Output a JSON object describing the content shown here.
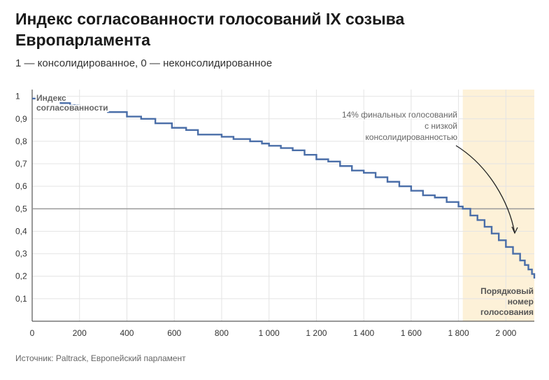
{
  "header": {
    "title": "Индекс согласованности голосований IX созыва Европарламента",
    "subtitle": "1 — консолидированное, 0 — неконсолидированное"
  },
  "footer": {
    "source": "Источник: Paltrack, Европейский парламент"
  },
  "chart_data": {
    "type": "line",
    "ylabel": "Индекс согласованности",
    "xlabel": [
      "Порядковый",
      "номер",
      "голосования"
    ],
    "xlim": [
      0,
      2120
    ],
    "ylim": [
      0,
      1.03
    ],
    "x_ticks": [
      0,
      200,
      400,
      600,
      800,
      1000,
      1200,
      1400,
      1600,
      1800,
      2000
    ],
    "x_tick_labels": [
      "0",
      "200",
      "400",
      "600",
      "800",
      "1 000",
      "1 200",
      "1 400",
      "1 600",
      "1 800",
      "2 000"
    ],
    "y_ticks": [
      0.1,
      0.2,
      0.3,
      0.4,
      0.5,
      0.6,
      0.7,
      0.8,
      0.9,
      1
    ],
    "y_tick_labels": [
      "0,1",
      "0,2",
      "0,3",
      "0,4",
      "0,5",
      "0,6",
      "0,7",
      "0,8",
      "0,9",
      "1"
    ],
    "grid": true,
    "reference_line": {
      "y": 0.5
    },
    "highlight": {
      "x_from": 1818,
      "x_to": 2120,
      "color": "#fdf1d8",
      "annotation": [
        "14% финальных голосований",
        "с низкой",
        "консолидированностью"
      ]
    },
    "series": [
      {
        "color": "#4a6ea8",
        "x": [
          0,
          60,
          120,
          160,
          200,
          260,
          320,
          400,
          460,
          520,
          590,
          650,
          700,
          800,
          850,
          920,
          970,
          1000,
          1050,
          1100,
          1150,
          1200,
          1250,
          1300,
          1350,
          1400,
          1450,
          1500,
          1550,
          1600,
          1650,
          1700,
          1750,
          1800,
          1818,
          1850,
          1880,
          1910,
          1940,
          1970,
          2000,
          2030,
          2060,
          2080,
          2095,
          2110,
          2120
        ],
        "y": [
          0.99,
          0.98,
          0.97,
          0.96,
          0.95,
          0.94,
          0.93,
          0.91,
          0.9,
          0.88,
          0.86,
          0.85,
          0.83,
          0.82,
          0.81,
          0.8,
          0.79,
          0.78,
          0.77,
          0.76,
          0.74,
          0.72,
          0.71,
          0.69,
          0.67,
          0.66,
          0.64,
          0.62,
          0.6,
          0.58,
          0.56,
          0.55,
          0.53,
          0.51,
          0.5,
          0.47,
          0.45,
          0.42,
          0.39,
          0.36,
          0.33,
          0.3,
          0.27,
          0.25,
          0.23,
          0.21,
          0.19
        ]
      }
    ]
  }
}
